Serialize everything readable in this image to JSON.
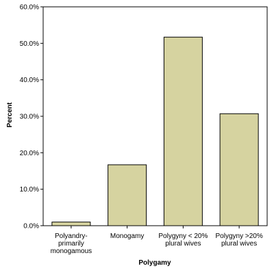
{
  "chart_data": {
    "type": "bar",
    "categories": [
      [
        "Polyandry-",
        "primarily",
        "monogamous"
      ],
      [
        "Monogamy"
      ],
      [
        "Polygyny < 20%",
        "plural wives"
      ],
      [
        "Polygyny >20%",
        "plural wives"
      ]
    ],
    "values": [
      1.0,
      16.7,
      51.7,
      30.7
    ],
    "xlabel": "Polygamy",
    "ylabel": "Percent",
    "ylim": [
      0,
      60
    ],
    "yticks": [
      0,
      10,
      20,
      30,
      40,
      50,
      60
    ],
    "ytick_labels": [
      "0.0%",
      "10.0%",
      "20.0%",
      "30.0%",
      "40.0%",
      "50.0%",
      "60.0%"
    ],
    "grid": false,
    "bar_color": "#d6d3a0",
    "bar_edge_color": "#000000"
  }
}
